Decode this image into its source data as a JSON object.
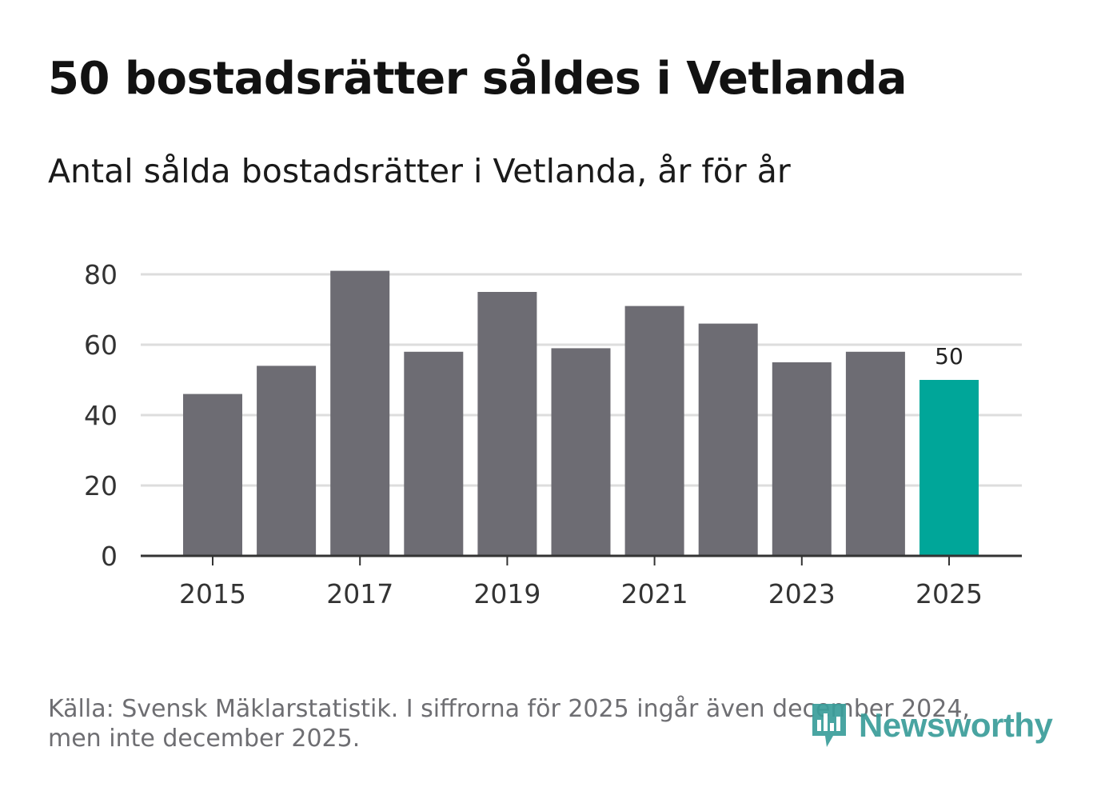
{
  "title": "50 bostadsrätter såldes i Vetlanda",
  "subtitle": "Antal sålda bostadsrätter i Vetlanda, år för år",
  "source": "Källa: Svensk Mäklarstatistik. I siffrorna för 2025 ingår även december 2024, men inte december 2025.",
  "brand": {
    "name": "Newsworthy",
    "color": "#3a9d9a",
    "icon": "newsworthy-logo-icon"
  },
  "colors": {
    "bar": "#6d6c73",
    "highlight": "#00a699",
    "grid": "#dddddd",
    "axis": "#333333"
  },
  "chart_data": {
    "type": "bar",
    "title": "50 bostadsrätter såldes i Vetlanda",
    "subtitle": "Antal sålda bostadsrätter i Vetlanda, år för år",
    "xlabel": "",
    "ylabel": "",
    "categories": [
      "2015",
      "2016",
      "2017",
      "2018",
      "2019",
      "2020",
      "2021",
      "2022",
      "2023",
      "2024",
      "2025"
    ],
    "values": [
      46,
      54,
      81,
      58,
      75,
      59,
      71,
      66,
      55,
      58,
      50
    ],
    "highlight_index": 10,
    "data_labels": [
      {
        "index": 10,
        "text": "50"
      }
    ],
    "x_tick_labels": [
      "2015",
      "2017",
      "2019",
      "2021",
      "2023",
      "2025"
    ],
    "y_ticks": [
      0,
      20,
      40,
      60,
      80
    ],
    "y_tick_labels": [
      "0",
      "20",
      "40",
      "60",
      "80"
    ],
    "ylim": [
      0,
      82
    ],
    "grid": true,
    "legend": "none"
  }
}
